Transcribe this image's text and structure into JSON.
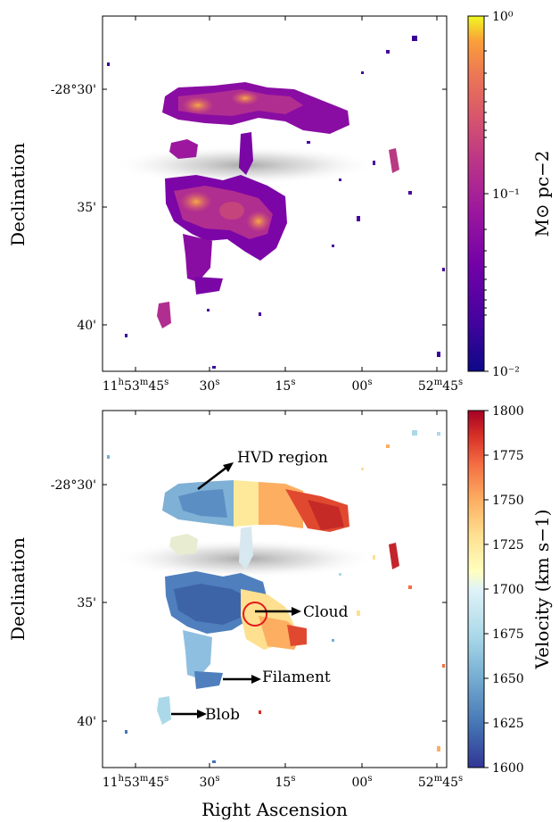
{
  "figure": {
    "x_axis_label": "Right Ascension",
    "y_axis_label": "Declination"
  },
  "chart_data": [
    {
      "type": "heatmap",
      "title": "",
      "xlabel": "",
      "ylabel": "Declination",
      "x_ticks": [
        {
          "main": "11",
          "sup1": "h",
          "mid": "53",
          "sup2": "m",
          "end": "45",
          "sup3": "s"
        },
        {
          "main": "30",
          "sup3": "s"
        },
        {
          "main": "15",
          "sup3": "s"
        },
        {
          "main": "00",
          "sup3": "s"
        },
        {
          "main": "52",
          "sup2": "m",
          "end": "45",
          "sup3": "s"
        }
      ],
      "y_ticks": [
        "-28°30'",
        "35'",
        "40'"
      ],
      "colorbar": {
        "label": "M⊙ pc−2",
        "scale": "log",
        "range": [
          0.01,
          1
        ],
        "ticks": [
          "10⁰",
          "10⁻¹",
          "10⁻²"
        ],
        "colormap": "plasma"
      }
    },
    {
      "type": "heatmap",
      "title": "",
      "xlabel": "Right Ascension",
      "ylabel": "Declination",
      "x_ticks": [
        {
          "main": "11",
          "sup1": "h",
          "mid": "53",
          "sup2": "m",
          "end": "45",
          "sup3": "s"
        },
        {
          "main": "30",
          "sup3": "s"
        },
        {
          "main": "15",
          "sup3": "s"
        },
        {
          "main": "00",
          "sup3": "s"
        },
        {
          "main": "52",
          "sup2": "m",
          "end": "45",
          "sup3": "s"
        }
      ],
      "y_ticks": [
        "-28°30'",
        "35'",
        "40'"
      ],
      "colorbar": {
        "label": "Velocity (km s−1)",
        "scale": "linear",
        "range": [
          1600,
          1800
        ],
        "ticks": [
          1800,
          1775,
          1750,
          1725,
          1700,
          1675,
          1650,
          1625,
          1600
        ],
        "colormap": "RdYlBu_r"
      },
      "annotations": [
        "HVD region",
        "Cloud",
        "Filament",
        "Blob"
      ]
    }
  ]
}
